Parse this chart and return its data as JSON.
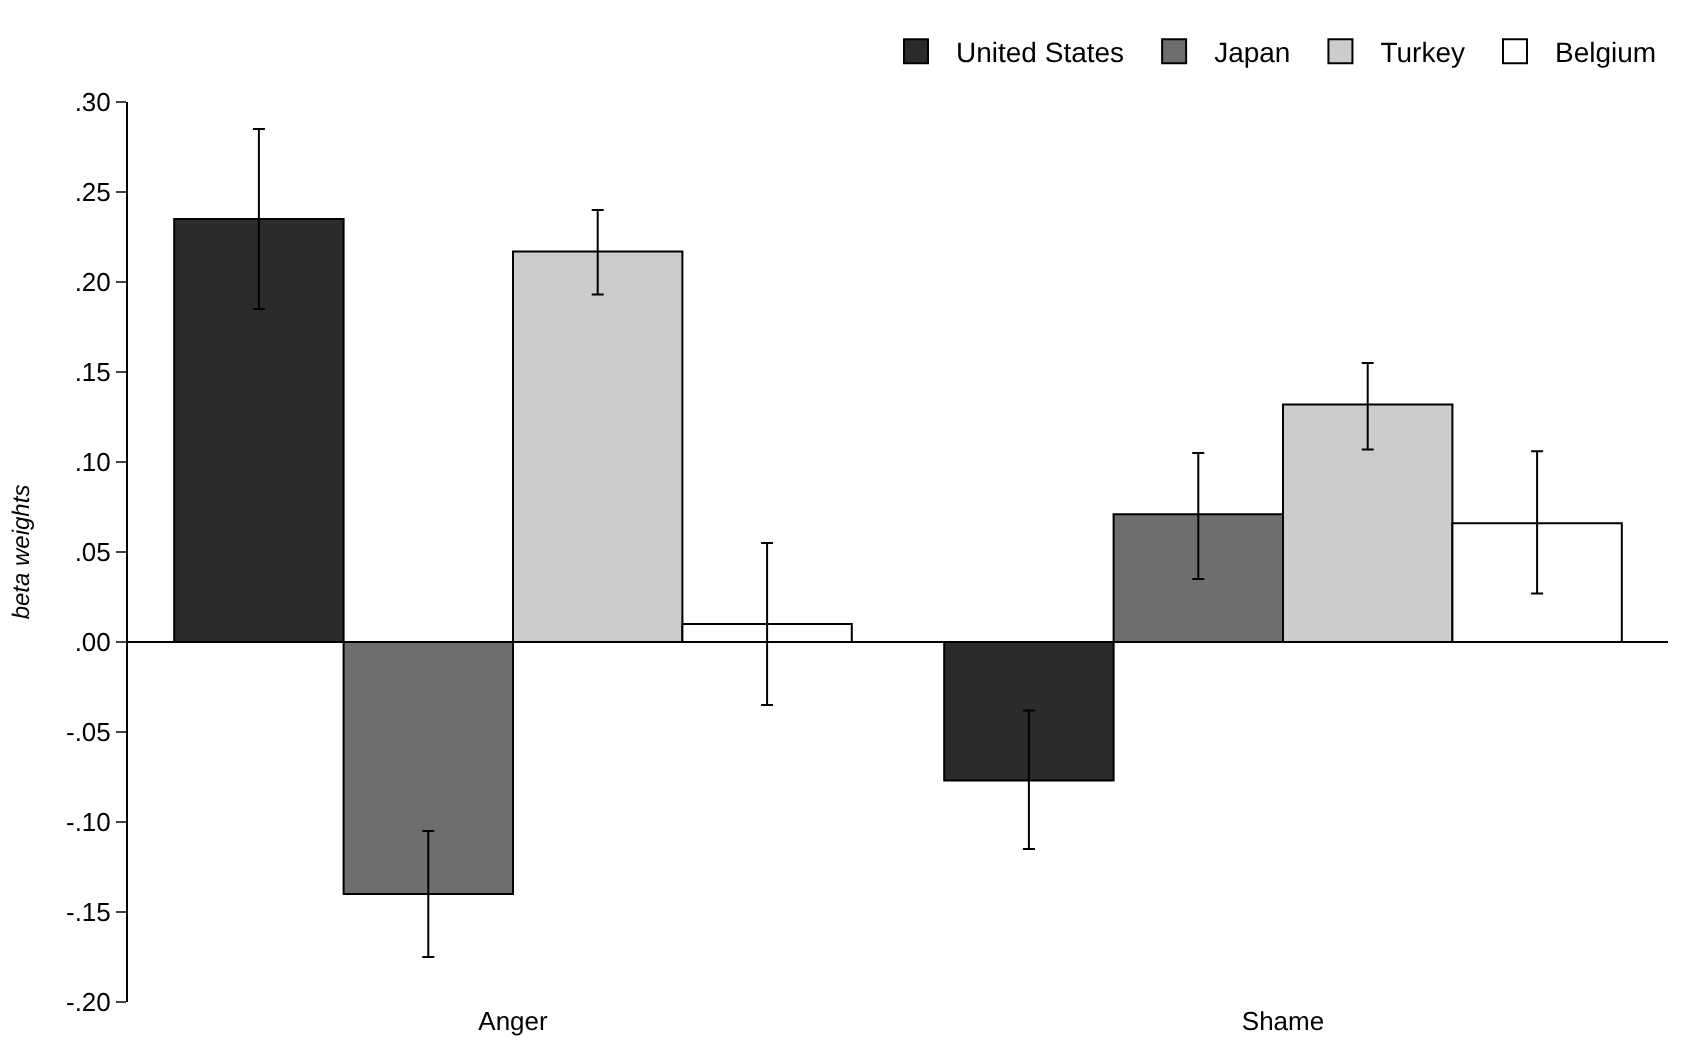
{
  "chart_data": {
    "type": "bar",
    "ylabel": "beta weights",
    "categories": [
      "Anger",
      "Shame"
    ],
    "series": [
      {
        "name": "United States",
        "color": "#2b2b2b",
        "values": [
          0.235,
          -0.077
        ],
        "errors": [
          [
            0.185,
            0.285
          ],
          [
            -0.115,
            -0.038
          ]
        ]
      },
      {
        "name": "Japan",
        "color": "#6e6e6e",
        "values": [
          -0.14,
          0.071
        ],
        "errors": [
          [
            -0.175,
            -0.105
          ],
          [
            0.035,
            0.105
          ]
        ]
      },
      {
        "name": "Turkey",
        "color": "#cccccc",
        "values": [
          0.217,
          0.132
        ],
        "errors": [
          [
            0.193,
            0.24
          ],
          [
            0.107,
            0.155
          ]
        ]
      },
      {
        "name": "Belgium",
        "color": "#ffffff",
        "values": [
          0.01,
          0.066
        ],
        "errors": [
          [
            -0.035,
            0.055
          ],
          [
            0.027,
            0.106
          ]
        ]
      }
    ],
    "ylim": [
      -0.2,
      0.3
    ],
    "yticks": [
      {
        "value": -0.2,
        "label": "-.20"
      },
      {
        "value": -0.15,
        "label": "-.15"
      },
      {
        "value": -0.1,
        "label": "-.10"
      },
      {
        "value": -0.05,
        "label": "-.05"
      },
      {
        "value": 0,
        "label": ".00"
      },
      {
        "value": 0.05,
        "label": ".05"
      },
      {
        "value": 0.1,
        "label": ".10"
      },
      {
        "value": 0.15,
        "label": ".15"
      },
      {
        "value": 0.2,
        "label": ".20"
      },
      {
        "value": 0.25,
        "label": ".25"
      },
      {
        "value": 0.3,
        "label": ".30"
      }
    ],
    "legend": "top right"
  }
}
